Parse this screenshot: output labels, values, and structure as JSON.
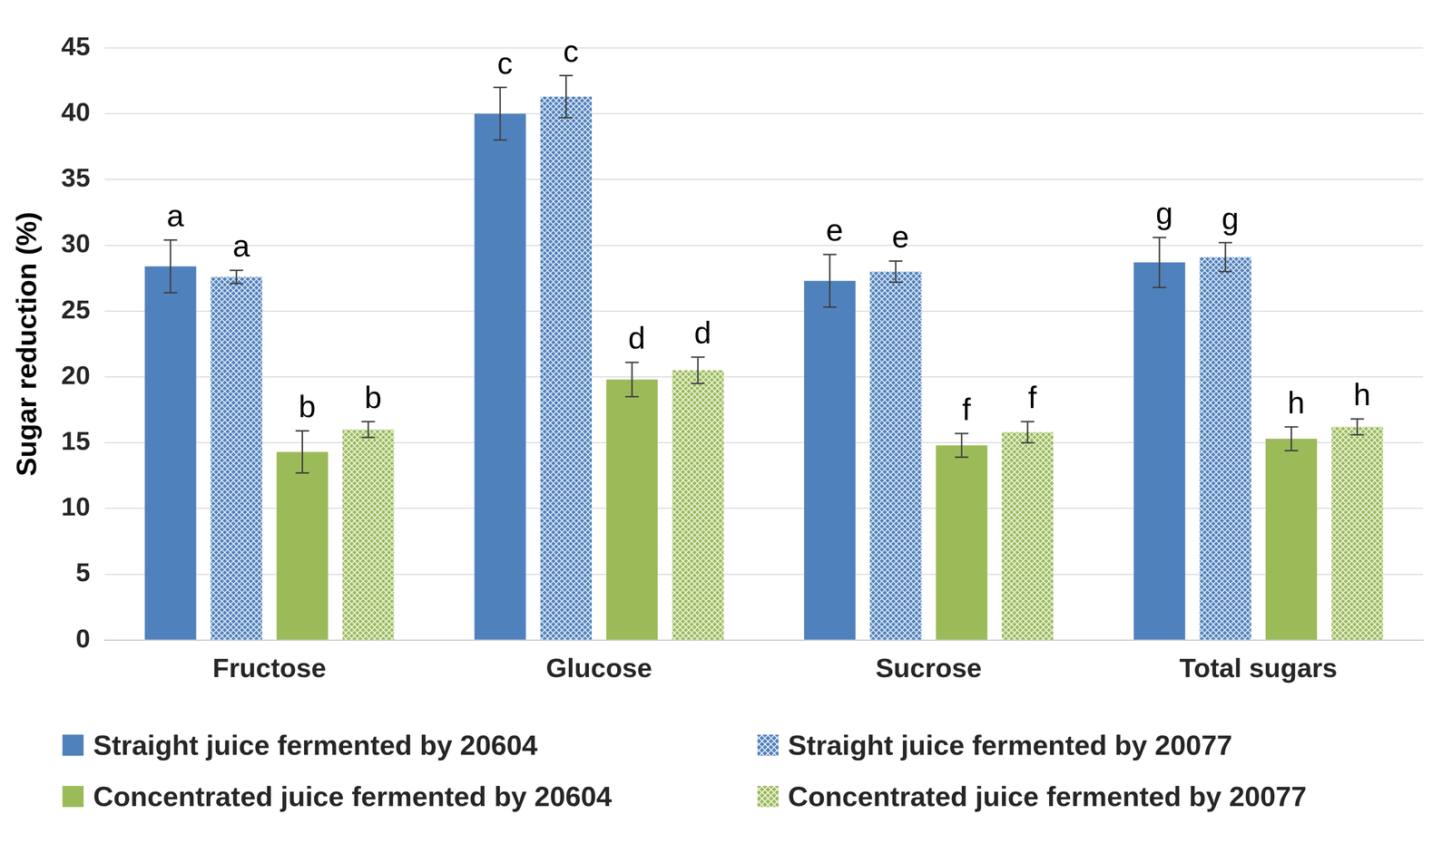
{
  "chart_data": {
    "type": "bar",
    "y_label": "Sugar reduction (%)",
    "categories": [
      "Fructose",
      "Glucose",
      "Sucrose",
      "Total sugars"
    ],
    "series": [
      {
        "name": "Straight juice fermented by 20604",
        "color": "#4f81bd",
        "values": [
          28.4,
          40.0,
          27.3,
          28.7
        ],
        "errors": [
          2.0,
          2.0,
          2.0,
          1.9
        ],
        "letters": [
          "a",
          "c",
          "e",
          "g"
        ]
      },
      {
        "name": "Straight juice fermented by 20077",
        "color": "#4f81bd",
        "values": [
          27.6,
          41.3,
          28.0,
          29.1
        ],
        "errors": [
          0.5,
          1.6,
          0.8,
          1.1
        ],
        "letters": [
          "a",
          "c",
          "e",
          "g"
        ]
      },
      {
        "name": "Concentrated juice fermented by 20604",
        "color": "#9bbb59",
        "values": [
          14.3,
          19.8,
          14.8,
          15.3
        ],
        "errors": [
          1.6,
          1.3,
          0.9,
          0.9
        ],
        "letters": [
          "b",
          "d",
          "f",
          "h"
        ]
      },
      {
        "name": "Concentrated juice fermented by 20077",
        "color": "#9bbb59",
        "values": [
          16.0,
          20.5,
          15.8,
          16.2
        ],
        "errors": [
          0.6,
          1.0,
          0.8,
          0.6
        ],
        "letters": [
          "b",
          "d",
          "f",
          "h"
        ]
      }
    ],
    "ylim": [
      0,
      45
    ],
    "yticks": [
      0,
      5,
      10,
      15,
      20,
      25,
      30,
      35,
      40,
      45
    ],
    "grid": true,
    "legend": "bottom"
  }
}
